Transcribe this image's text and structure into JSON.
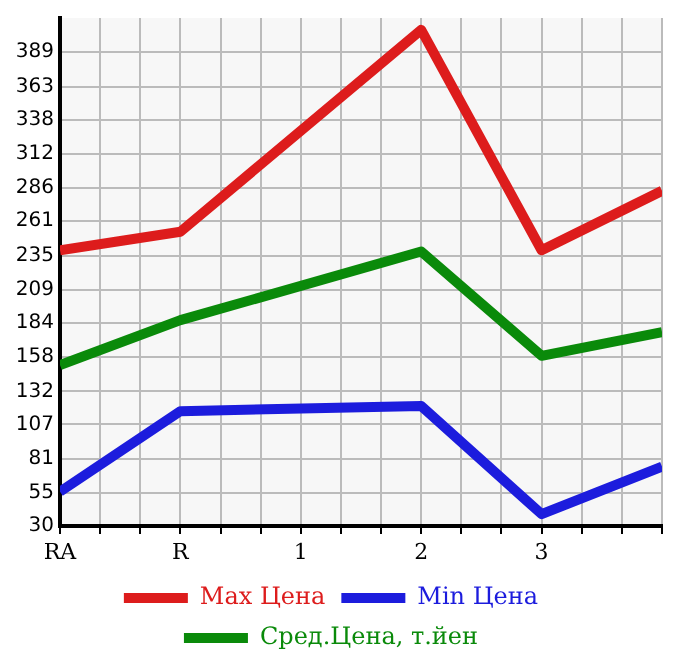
{
  "chart_data": {
    "type": "line",
    "categories": [
      "RA",
      "R",
      "1",
      "2",
      "3",
      null
    ],
    "series": [
      {
        "name": "Max Цена",
        "color": "#dd1c1c",
        "values": [
          239,
          253,
          null,
          406,
          239,
          284
        ]
      },
      {
        "name": "Min Цена",
        "color": "#1c1cdd",
        "values": [
          56,
          117,
          null,
          121,
          39,
          75
        ]
      },
      {
        "name": "Сред.Цена, т.йен",
        "color": "#0a8a0a",
        "values": [
          152,
          186,
          null,
          238,
          159,
          177
        ]
      }
    ],
    "ylim": [
      30,
      415
    ],
    "yticks": [
      30,
      55,
      81,
      107,
      132,
      158,
      184,
      209,
      235,
      261,
      286,
      312,
      338,
      363,
      389
    ],
    "grid": true,
    "legend": "bottom",
    "marker": "none",
    "line_style": "solid"
  }
}
